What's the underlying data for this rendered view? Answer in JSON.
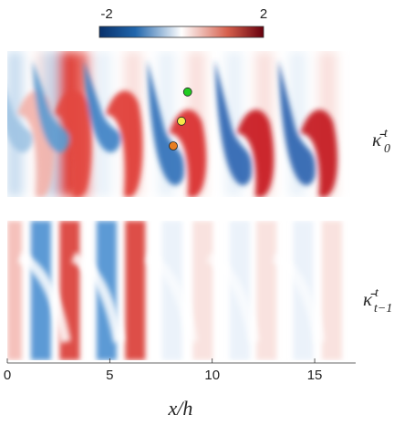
{
  "chart_data": {
    "type": "heatmap",
    "colorbar": {
      "min": -2,
      "max": 2,
      "min_label": "-2",
      "max_label": "2",
      "colors": [
        "#08306b",
        "#2166ac",
        "#ffffff",
        "#d6604d",
        "#67000d"
      ]
    },
    "x_axis": {
      "label": "x/h",
      "xlim": [
        0,
        17
      ],
      "ticks": [
        0,
        5,
        10,
        15
      ],
      "tick_labels": [
        "0",
        "5",
        "10",
        "15"
      ]
    },
    "panels": [
      {
        "row_label": "κ̄₀ᵗ",
        "row_label_main": "κ̄",
        "row_label_sup": "t",
        "row_label_sub": "0",
        "wave_peaks_x": [
          1.3,
          3.1,
          5.6,
          8.7,
          12.0,
          15.1
        ],
        "markers": [
          {
            "x": 8.8,
            "level": 0.72,
            "color": "#22cc22"
          },
          {
            "x": 8.5,
            "level": 0.52,
            "color": "#f6e84a"
          },
          {
            "x": 8.1,
            "level": 0.35,
            "color": "#e87d22"
          }
        ]
      },
      {
        "row_label": "κ̄ₜ₋₁ᵗ",
        "row_label_main": "κ̄",
        "row_label_sup": "t",
        "row_label_sub": "t−1",
        "stripes_x": [
          1.6,
          3.0,
          4.8,
          6.2,
          8.0,
          9.5,
          11.3,
          12.6,
          14.4,
          15.8
        ]
      }
    ]
  }
}
